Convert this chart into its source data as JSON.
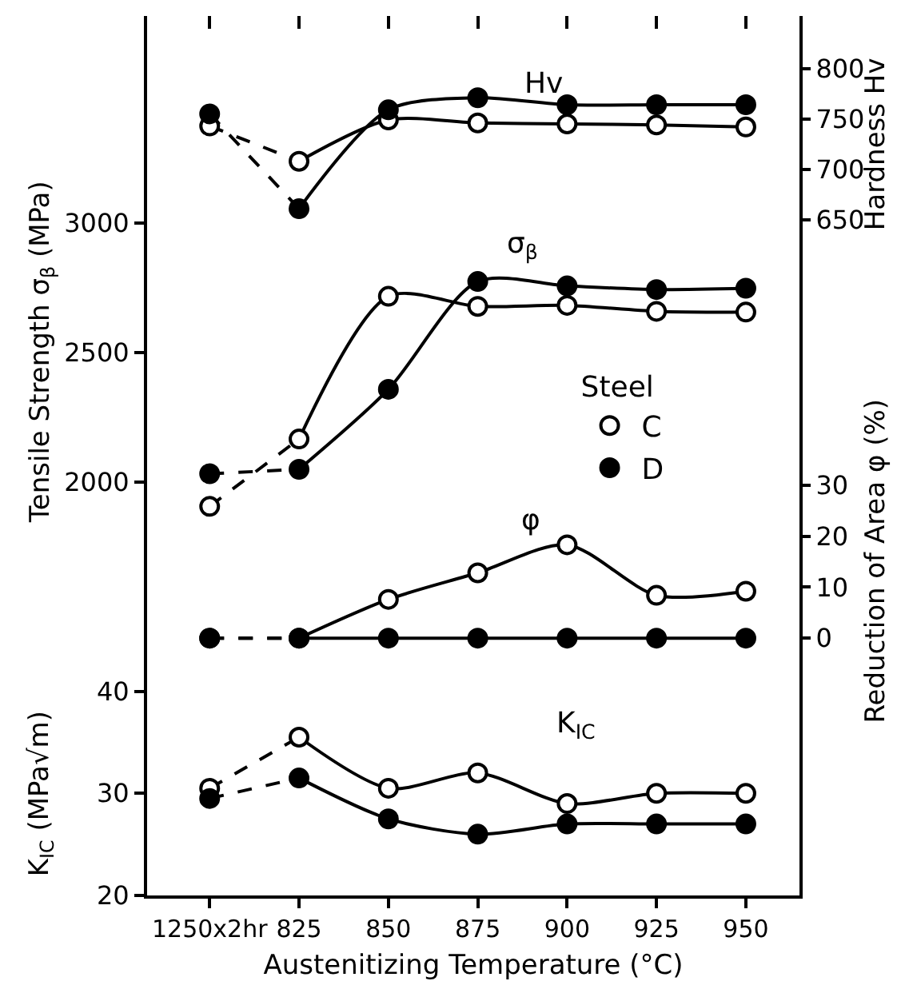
{
  "chart_data": [
    {
      "type": "line",
      "tick_labels": "y",
      "ylabel": "Tensile Strength σ$_{β}$ (MPa)",
      "y2label": "Hardness Hv",
      "y3label": "Reduction of Area φ (%)",
      "legend_title": "Steel",
      "legend": "right",
      "marker": "circle",
      "categories": [
        "1250x2hr",
        "825",
        "850",
        "875",
        "900",
        "925",
        "950"
      ],
      "ylim": [
        1300,
        3800
      ],
      "yticks": [
        2000,
        2500,
        3000
      ],
      "y2lim": [
        210,
        852
      ],
      "y2ticks": [
        650,
        700,
        750,
        800
      ],
      "y3lim": [
        -5,
        122
      ],
      "y3ticks": [
        0,
        10,
        20,
        30
      ],
      "series": [
        {
          "name": "C",
          "color": "#ffffff",
          "axis": "y2",
          "values": [
            743,
            708,
            749,
            746,
            745,
            744,
            742
          ]
        },
        {
          "name": "D",
          "color": "#000000",
          "axis": "y2",
          "values": [
            755,
            661,
            759,
            771,
            764,
            764,
            764
          ]
        },
        {
          "color": "#ffffff",
          "values": [
            1907,
            2167,
            2718,
            2679,
            2683,
            2660,
            2657
          ]
        },
        {
          "color": "#000000",
          "values": [
            2033,
            2050,
            2359,
            2775,
            2758,
            2744,
            2749
          ]
        },
        {
          "color": "#ffffff",
          "axis": "y3",
          "values": [
            0,
            0,
            7.6,
            12.8,
            18.3,
            8.4,
            9.2
          ]
        },
        {
          "color": "#000000",
          "axis": "y3",
          "values": [
            0,
            0,
            0,
            0,
            0,
            0,
            0
          ]
        }
      ],
      "annotations": [
        "Hv",
        "σ$_{β}$",
        "φ"
      ]
    },
    {
      "type": "line",
      "marker": "circle",
      "xlabel": "Austenitizing Temperature (°C)",
      "ylabel": "K$_{IC}$ (MPa√m)",
      "categories": [
        "1250x2hr",
        "825",
        "850",
        "875",
        "900",
        "925",
        "950"
      ],
      "ylim": [
        20,
        42.7
      ],
      "yticks": [
        20,
        30,
        40
      ],
      "series": [
        {
          "color": "#ffffff",
          "values": [
            30.5,
            35.5,
            30.5,
            32,
            29,
            30,
            30
          ]
        },
        {
          "color": "#000000",
          "values": [
            29.5,
            31.5,
            27.5,
            26,
            27,
            27,
            27
          ]
        }
      ],
      "annotations": [
        "K$_{IC}$"
      ]
    }
  ]
}
